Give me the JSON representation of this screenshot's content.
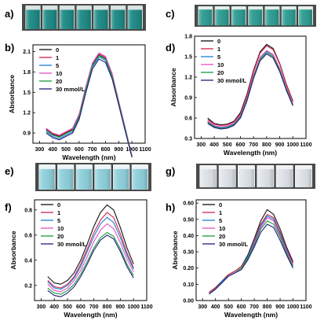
{
  "panels": [
    {
      "label": "a)",
      "photo": {
        "liquid": "#1f8a86",
        "glass": "#d9e4e3",
        "label": "photo-vials-a"
      }
    },
    {
      "label": "c)",
      "photo": {
        "liquid": "#2f9d93",
        "glass": "#e4eeec",
        "label": "photo-vials-c"
      }
    },
    {
      "label": "e)",
      "photo": {
        "liquid": "#8fd0dc",
        "glass": "#ecf4f6",
        "label": "photo-vials-e"
      }
    },
    {
      "label": "g)",
      "photo": {
        "liquid": "#dfe4ea",
        "glass": "#f0f2f4",
        "label": "photo-vials-g"
      }
    }
  ],
  "chart_data": [
    {
      "panel": "b)",
      "type": "line",
      "xlabel": "Wavelength (nm)",
      "ylabel": "Absorbance",
      "xlim": [
        250,
        1100
      ],
      "xticks": [
        300,
        400,
        500,
        600,
        700,
        800,
        900,
        1000,
        1100
      ],
      "ylim": [
        0.75,
        2.2
      ],
      "yticks": [
        0.9,
        1.2,
        1.5,
        1.8,
        2.1
      ],
      "ytick_labels": [
        "0.9",
        "1.2",
        "1.5",
        "1.8",
        "2.1"
      ],
      "legend": {
        "placement": "top-left",
        "entries": [
          "0",
          "1",
          "5",
          "10",
          "20",
          "30 mmol/L"
        ]
      },
      "grid": false,
      "x": [
        350,
        400,
        450,
        500,
        550,
        600,
        650,
        700,
        750,
        800,
        850,
        900,
        950,
        1000
      ],
      "series": [
        {
          "name": "0",
          "color": "#111111",
          "values": [
            0.95,
            0.88,
            0.85,
            0.9,
            0.95,
            1.15,
            1.55,
            1.9,
            2.05,
            2.0,
            1.75,
            1.35,
            0.95,
            0.55
          ]
        },
        {
          "name": "1",
          "color": "#d2244a",
          "values": [
            0.96,
            0.89,
            0.86,
            0.91,
            0.96,
            1.17,
            1.57,
            1.92,
            2.07,
            2.02,
            1.77,
            1.36,
            0.96,
            0.56
          ]
        },
        {
          "name": "5",
          "color": "#1a7fd6",
          "values": [
            0.92,
            0.85,
            0.82,
            0.87,
            0.92,
            1.12,
            1.52,
            1.87,
            2.02,
            1.97,
            1.72,
            1.33,
            0.94,
            0.55
          ]
        },
        {
          "name": "10",
          "color": "#e64fc3",
          "values": [
            0.97,
            0.9,
            0.87,
            0.92,
            0.97,
            1.18,
            1.58,
            1.93,
            2.08,
            2.03,
            1.78,
            1.37,
            0.97,
            0.56
          ]
        },
        {
          "name": "20",
          "color": "#1a9a3e",
          "values": [
            0.94,
            0.87,
            0.84,
            0.89,
            0.94,
            1.14,
            1.54,
            1.89,
            2.04,
            1.99,
            1.74,
            1.34,
            0.95,
            0.55
          ]
        },
        {
          "name": "30 mmol/L",
          "color": "#1c1f7a",
          "values": [
            0.9,
            0.83,
            0.8,
            0.85,
            0.9,
            1.1,
            1.49,
            1.84,
            1.99,
            1.94,
            1.7,
            1.31,
            0.92,
            0.54
          ]
        }
      ]
    },
    {
      "panel": "d)",
      "type": "line",
      "xlabel": "Wavelength (nm)",
      "ylabel": "Absorbance",
      "xlim": [
        250,
        1100
      ],
      "xticks": [
        300,
        400,
        500,
        600,
        700,
        800,
        900,
        1000,
        1100
      ],
      "ylim": [
        0.3,
        1.8
      ],
      "yticks": [
        0.3,
        0.6,
        0.9,
        1.2,
        1.5,
        1.8
      ],
      "ytick_labels": [
        "0.3",
        "0.6",
        "0.9",
        "1.2",
        "1.5",
        "1.8"
      ],
      "legend": {
        "placement": "top-left",
        "entries": [
          "0",
          "1",
          "5",
          "10",
          "20",
          "30 mmol/L"
        ]
      },
      "grid": false,
      "x": [
        350,
        400,
        450,
        500,
        550,
        600,
        650,
        700,
        750,
        800,
        850,
        900,
        950,
        1000
      ],
      "series": [
        {
          "name": "0",
          "color": "#111111",
          "values": [
            0.6,
            0.52,
            0.5,
            0.51,
            0.55,
            0.68,
            0.95,
            1.3,
            1.57,
            1.68,
            1.62,
            1.4,
            1.1,
            0.85
          ]
        },
        {
          "name": "1",
          "color": "#d2244a",
          "values": [
            0.58,
            0.51,
            0.49,
            0.5,
            0.54,
            0.66,
            0.93,
            1.28,
            1.55,
            1.66,
            1.6,
            1.39,
            1.09,
            0.84
          ]
        },
        {
          "name": "5",
          "color": "#1a7fd6",
          "values": [
            0.55,
            0.48,
            0.46,
            0.47,
            0.51,
            0.63,
            0.88,
            1.22,
            1.48,
            1.58,
            1.52,
            1.32,
            1.04,
            0.8
          ]
        },
        {
          "name": "10",
          "color": "#e64fc3",
          "values": [
            0.56,
            0.49,
            0.47,
            0.48,
            0.52,
            0.64,
            0.89,
            1.23,
            1.49,
            1.59,
            1.53,
            1.33,
            1.05,
            0.81
          ]
        },
        {
          "name": "20",
          "color": "#1a9a3e",
          "values": [
            0.54,
            0.47,
            0.45,
            0.46,
            0.5,
            0.62,
            0.87,
            1.2,
            1.46,
            1.56,
            1.5,
            1.3,
            1.03,
            0.79
          ]
        },
        {
          "name": "30 mmol/L",
          "color": "#1c1f7a",
          "values": [
            0.52,
            0.46,
            0.44,
            0.45,
            0.49,
            0.6,
            0.85,
            1.18,
            1.44,
            1.54,
            1.48,
            1.28,
            1.01,
            0.78
          ]
        }
      ]
    },
    {
      "panel": "f)",
      "type": "line",
      "xlabel": "Wavelength (nm)",
      "ylabel": "Absorbance",
      "xlim": [
        250,
        1100
      ],
      "xticks": [
        300,
        400,
        500,
        600,
        700,
        800,
        900,
        1000,
        1100
      ],
      "ylim": [
        0.08,
        0.88
      ],
      "yticks": [
        0.2,
        0.4,
        0.6,
        0.8
      ],
      "ytick_labels": [
        "0.2",
        "0.4",
        "0.6",
        "0.8"
      ],
      "legend": {
        "placement": "top-left",
        "entries": [
          "0",
          "1",
          "5",
          "10",
          "20",
          "30 mmol/L"
        ]
      },
      "grid": false,
      "x": [
        350,
        400,
        450,
        500,
        550,
        600,
        650,
        700,
        750,
        800,
        850,
        900,
        950,
        1000
      ],
      "series": [
        {
          "name": "0",
          "color": "#111111",
          "values": [
            0.27,
            0.22,
            0.21,
            0.24,
            0.3,
            0.4,
            0.53,
            0.67,
            0.78,
            0.84,
            0.8,
            0.66,
            0.5,
            0.37
          ]
        },
        {
          "name": "1",
          "color": "#d2244a",
          "values": [
            0.24,
            0.19,
            0.18,
            0.21,
            0.27,
            0.37,
            0.49,
            0.62,
            0.72,
            0.78,
            0.74,
            0.61,
            0.46,
            0.34
          ]
        },
        {
          "name": "5",
          "color": "#1a7fd6",
          "values": [
            0.23,
            0.18,
            0.17,
            0.2,
            0.26,
            0.35,
            0.47,
            0.59,
            0.69,
            0.74,
            0.7,
            0.58,
            0.44,
            0.33
          ]
        },
        {
          "name": "10",
          "color": "#e64fc3",
          "values": [
            0.21,
            0.16,
            0.15,
            0.18,
            0.24,
            0.32,
            0.43,
            0.55,
            0.64,
            0.69,
            0.65,
            0.54,
            0.41,
            0.31
          ]
        },
        {
          "name": "20",
          "color": "#1a9a3e",
          "values": [
            0.18,
            0.14,
            0.13,
            0.16,
            0.21,
            0.29,
            0.39,
            0.5,
            0.58,
            0.62,
            0.59,
            0.49,
            0.37,
            0.28
          ]
        },
        {
          "name": "30 mmol/L",
          "color": "#1c1f7a",
          "values": [
            0.16,
            0.12,
            0.11,
            0.14,
            0.19,
            0.27,
            0.37,
            0.48,
            0.56,
            0.6,
            0.57,
            0.47,
            0.35,
            0.26
          ]
        }
      ]
    },
    {
      "panel": "h)",
      "type": "line",
      "xlabel": "Wavelength (nm)",
      "ylabel": "Absorbance",
      "xlim": [
        250,
        1100
      ],
      "xticks": [
        300,
        400,
        500,
        600,
        700,
        800,
        900,
        1000,
        1100
      ],
      "ylim": [
        0.0,
        0.62
      ],
      "yticks": [
        0.0,
        0.1,
        0.2,
        0.3,
        0.4,
        0.5,
        0.6
      ],
      "ytick_labels": [
        "0.00",
        "0.10",
        "0.20",
        "0.30",
        "0.40",
        "0.50",
        "0.60"
      ],
      "legend": {
        "placement": "top-left",
        "entries": [
          "0",
          "1",
          "5",
          "10",
          "20",
          "30 mmol/L"
        ]
      },
      "grid": false,
      "x": [
        350,
        400,
        450,
        500,
        550,
        600,
        650,
        700,
        750,
        800,
        850,
        900,
        950,
        1000
      ],
      "series": [
        {
          "name": "0",
          "color": "#111111",
          "values": [
            0.05,
            0.08,
            0.12,
            0.16,
            0.18,
            0.21,
            0.28,
            0.38,
            0.49,
            0.56,
            0.53,
            0.44,
            0.33,
            0.24
          ]
        },
        {
          "name": "1",
          "color": "#d2244a",
          "values": [
            0.05,
            0.08,
            0.12,
            0.16,
            0.18,
            0.21,
            0.27,
            0.37,
            0.47,
            0.53,
            0.51,
            0.42,
            0.32,
            0.23
          ]
        },
        {
          "name": "5",
          "color": "#1a7fd6",
          "values": [
            0.04,
            0.07,
            0.12,
            0.15,
            0.17,
            0.2,
            0.27,
            0.36,
            0.46,
            0.52,
            0.5,
            0.41,
            0.31,
            0.22
          ]
        },
        {
          "name": "10",
          "color": "#e64fc3",
          "values": [
            0.04,
            0.07,
            0.11,
            0.15,
            0.17,
            0.2,
            0.26,
            0.35,
            0.45,
            0.51,
            0.49,
            0.4,
            0.3,
            0.22
          ]
        },
        {
          "name": "20",
          "color": "#1a9a3e",
          "values": [
            0.04,
            0.07,
            0.11,
            0.15,
            0.17,
            0.2,
            0.26,
            0.34,
            0.44,
            0.49,
            0.47,
            0.39,
            0.29,
            0.21
          ]
        },
        {
          "name": "30 mmol/L",
          "color": "#1c1f7a",
          "values": [
            0.04,
            0.07,
            0.11,
            0.15,
            0.17,
            0.19,
            0.25,
            0.33,
            0.42,
            0.47,
            0.45,
            0.37,
            0.28,
            0.2
          ]
        }
      ]
    }
  ]
}
